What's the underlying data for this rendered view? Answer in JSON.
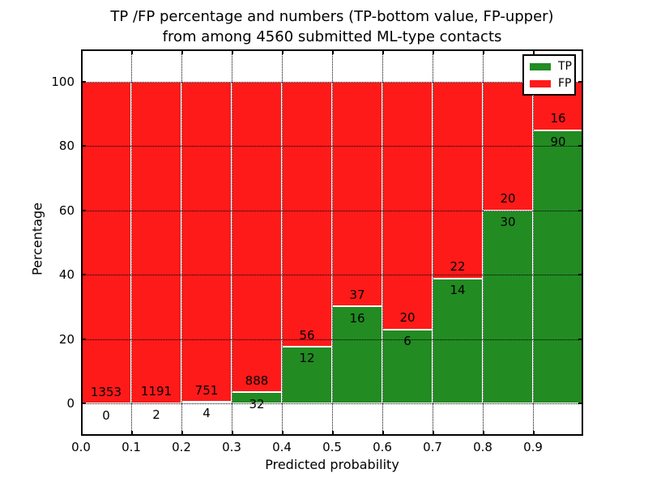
{
  "figure": {
    "title_line1": "TP /FP percentage and numbers (TP-bottom value, FP-upper)",
    "title_line2": "from among 4560 submitted ML-type contacts"
  },
  "chart_data": {
    "type": "bar",
    "subtype": "stacked-percentage-histogram",
    "title": "TP /FP percentage and numbers (TP-bottom value, FP-upper) from among 4560 submitted ML-type contacts",
    "xlabel": "Predicted probability",
    "ylabel": "Percentage",
    "xlim": [
      0.0,
      1.0
    ],
    "ylim": [
      -10,
      110
    ],
    "x_tick_labels": [
      "0.0",
      "0.1",
      "0.2",
      "0.3",
      "0.4",
      "0.5",
      "0.6",
      "0.7",
      "0.8",
      "0.9"
    ],
    "y_tick_values": [
      0,
      20,
      40,
      60,
      80,
      100
    ],
    "bin_width": 0.1,
    "bin_starts": [
      0.0,
      0.1,
      0.2,
      0.3,
      0.4,
      0.5,
      0.6,
      0.7,
      0.8,
      0.9
    ],
    "series": [
      {
        "name": "TP",
        "color": "#228b22",
        "counts": [
          0,
          2,
          4,
          32,
          12,
          16,
          6,
          14,
          30,
          90
        ]
      },
      {
        "name": "FP",
        "color": "#ff1a1a",
        "counts": [
          1353,
          1191,
          751,
          888,
          56,
          37,
          20,
          22,
          20,
          16
        ]
      }
    ],
    "stacking": "each bin normalized to 100%, TP on bottom, FP on top",
    "annotation_rule": "FP count printed just above TP/FP boundary, TP count just below it",
    "grid": {
      "style": "dotted",
      "color": "#000000"
    },
    "bar_edge_color": "#ffffff",
    "legend": {
      "position": "upper right",
      "entries": [
        {
          "label": "TP",
          "color": "#228b22"
        },
        {
          "label": "FP",
          "color": "#ff1a1a"
        }
      ]
    },
    "total_contacts": 4560
  }
}
